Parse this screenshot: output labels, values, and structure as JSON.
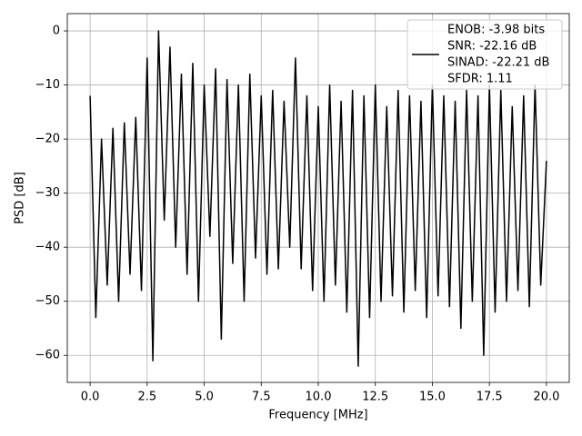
{
  "chart_data": {
    "type": "line",
    "x_label": "Frequency [MHz]",
    "y_label": "PSD [dB]",
    "x": [
      0,
      0.25,
      0.5,
      0.75,
      1,
      1.25,
      1.5,
      1.75,
      2,
      2.25,
      2.5,
      2.75,
      3,
      3.25,
      3.5,
      3.75,
      4,
      4.25,
      4.5,
      4.75,
      5,
      5.25,
      5.5,
      5.75,
      6,
      6.25,
      6.5,
      6.75,
      7,
      7.25,
      7.5,
      7.75,
      8,
      8.25,
      8.5,
      8.75,
      9,
      9.25,
      9.5,
      9.75,
      10,
      10.25,
      10.5,
      10.75,
      11,
      11.25,
      11.5,
      11.75,
      12,
      12.25,
      12.5,
      12.75,
      13,
      13.25,
      13.5,
      13.75,
      14,
      14.25,
      14.5,
      14.75,
      15,
      15.25,
      15.5,
      15.75,
      16,
      16.25,
      16.5,
      16.75,
      17,
      17.25,
      17.5,
      17.75,
      18,
      18.25,
      18.5,
      18.75,
      19,
      19.25,
      19.5,
      19.75,
      20
    ],
    "series": [
      {
        "name": [
          "ENOB: -3.98 bits",
          "SNR: -22.16 dB",
          "SINAD: -22.21 dB",
          "SFDR: 1.11"
        ],
        "color": "#000000",
        "values": [
          -12,
          -53,
          -20,
          -47,
          -18,
          -50,
          -17,
          -45,
          -16,
          -48,
          -5,
          -61,
          0,
          -35,
          -3,
          -40,
          -8,
          -45,
          -6,
          -50,
          -10,
          -38,
          -7,
          -57,
          -9,
          -43,
          -10,
          -50,
          -8,
          -42,
          -12,
          -45,
          -11,
          -44,
          -13,
          -40,
          -5,
          -44,
          -12,
          -48,
          -14,
          -50,
          -10,
          -47,
          -13,
          -52,
          -11,
          -62,
          -12,
          -53,
          -10,
          -50,
          -14,
          -49,
          -11,
          -52,
          -12,
          -48,
          -13,
          -53,
          -10,
          -49,
          -12,
          -51,
          -13,
          -55,
          -11,
          -50,
          -12,
          -60,
          -10,
          -52,
          -11,
          -50,
          -14,
          -48,
          -12,
          -51,
          -10,
          -47,
          -24
        ]
      }
    ],
    "xlim": [
      -1,
      21
    ],
    "ylim": [
      -65,
      3.2
    ],
    "xticks": [
      {
        "value": 0,
        "label": "0.0"
      },
      2.5,
      {
        "value": 5,
        "label": "5.0"
      },
      7.5,
      {
        "value": 10,
        "label": "10.0"
      },
      12.5,
      {
        "value": 15,
        "label": "15.0"
      },
      17.5,
      {
        "value": 20,
        "label": "20.0"
      }
    ],
    "yticks": [
      0,
      {
        "value": -10,
        "label": "−10"
      },
      {
        "value": -20,
        "label": "−20"
      },
      {
        "value": -30,
        "label": "−30"
      },
      {
        "value": -40,
        "label": "−40"
      },
      {
        "value": -50,
        "label": "−50"
      },
      {
        "value": -60,
        "label": "−60"
      }
    ],
    "grid": true,
    "legend": "upper right"
  }
}
